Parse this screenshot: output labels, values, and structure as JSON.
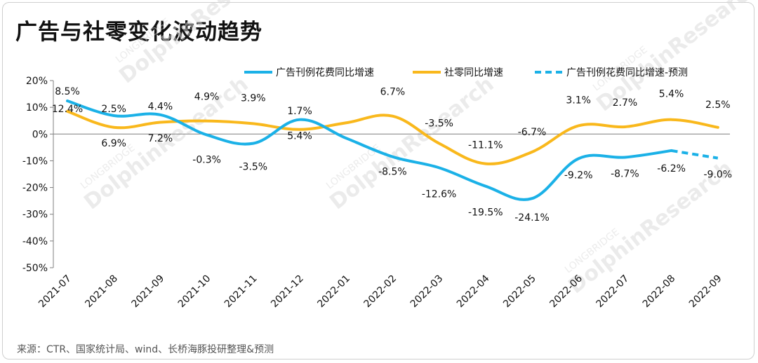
{
  "title": "广告与社零变化波动趋势",
  "source": "来源：CTR、国家统计局、wind、长桥海豚投研整理&预测",
  "colors": {
    "ad": "#1bb1e7",
    "retail": "#f9b81c",
    "forecast_label": "#8c8c8c",
    "axis": "#7f7f7f"
  },
  "watermark": {
    "brand": "DolphinResearch",
    "sub": "LONGBRIDGE"
  },
  "chart_data": {
    "type": "line",
    "categories": [
      "2021-07",
      "2021-08",
      "2021-09",
      "2021-10",
      "2021-11",
      "2021-12",
      "2022-01",
      "2022-02",
      "2022-03",
      "2022-04",
      "2022-05",
      "2022-06",
      "2022-07",
      "2022-08",
      "2022-09"
    ],
    "ylim": [
      -50,
      20
    ],
    "yticks": [
      20,
      10,
      0,
      -10,
      -20,
      -30,
      -40,
      -50
    ],
    "ytick_labels": [
      "20%",
      "10%",
      "0%",
      "-10%",
      "-20%",
      "-30%",
      "-40%",
      "-50%"
    ],
    "grid": false,
    "legend": "top-right",
    "series": [
      {
        "name": "广告刊例花费同比增速",
        "key": "ad",
        "style": "solid",
        "values": [
          12.4,
          6.9,
          7.2,
          -0.3,
          -3.5,
          5.4,
          null,
          -8.5,
          -12.6,
          -19.5,
          -24.1,
          -9.2,
          -8.7,
          -6.2,
          null
        ],
        "labels": [
          "12.4%",
          "6.9%",
          "7.2%",
          "-0.3%",
          "-3.5%",
          "5.4%",
          "",
          "-8.5%",
          "-12.6%",
          "-19.5%",
          "-24.1%",
          "-9.2%",
          "-8.7%",
          "-6.2%",
          ""
        ]
      },
      {
        "name": "社零同比增速",
        "key": "retail",
        "style": "solid",
        "values": [
          8.5,
          2.5,
          4.4,
          4.9,
          3.9,
          1.7,
          null,
          6.7,
          -3.5,
          -11.1,
          -6.7,
          3.1,
          2.7,
          5.4,
          2.5
        ],
        "labels": [
          "8.5%",
          "2.5%",
          "4.4%",
          "4.9%",
          "3.9%",
          "1.7%",
          "",
          "6.7%",
          "-3.5%",
          "-11.1%",
          "-6.7%",
          "3.1%",
          "2.7%",
          "5.4%",
          "2.5%"
        ]
      },
      {
        "name": "广告刊例花费同比增速-预测",
        "key": "ad",
        "style": "dashed",
        "values": [
          null,
          null,
          null,
          null,
          null,
          null,
          null,
          null,
          null,
          null,
          null,
          null,
          null,
          -6.2,
          -9.0
        ],
        "labels": [
          "",
          "",
          "",
          "",
          "",
          "",
          "",
          "",
          "",
          "",
          "",
          "",
          "",
          "",
          "-9.0%"
        ]
      }
    ]
  }
}
